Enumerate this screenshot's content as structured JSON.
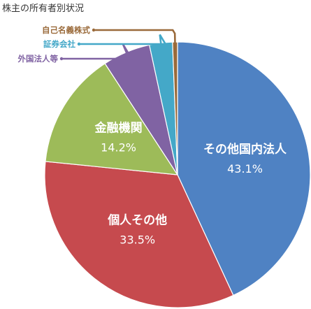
{
  "chart_data": {
    "type": "pie",
    "title": "株主の所有者別状況",
    "unit": "%",
    "slices": [
      {
        "name": "その他国内法人",
        "value": 43.1,
        "label": "43.1%",
        "color": "#4f82c3",
        "label_position": "inside"
      },
      {
        "name": "個人その他",
        "value": 33.5,
        "label": "33.5%",
        "color": "#c64a4e",
        "label_position": "inside"
      },
      {
        "name": "金融機関",
        "value": 14.2,
        "label": "14.2%",
        "color": "#9dbb59",
        "label_position": "inside"
      },
      {
        "name": "外国法人等",
        "value": 5.8,
        "label": "",
        "color": "#8063a3",
        "label_position": "outside"
      },
      {
        "name": "証券会社",
        "value": 2.8,
        "label": "",
        "color": "#44a8c8",
        "label_position": "outside"
      },
      {
        "name": "自己名義株式",
        "value": 0.6,
        "label": "",
        "color": "#9a6a3a",
        "label_position": "outside"
      }
    ]
  }
}
